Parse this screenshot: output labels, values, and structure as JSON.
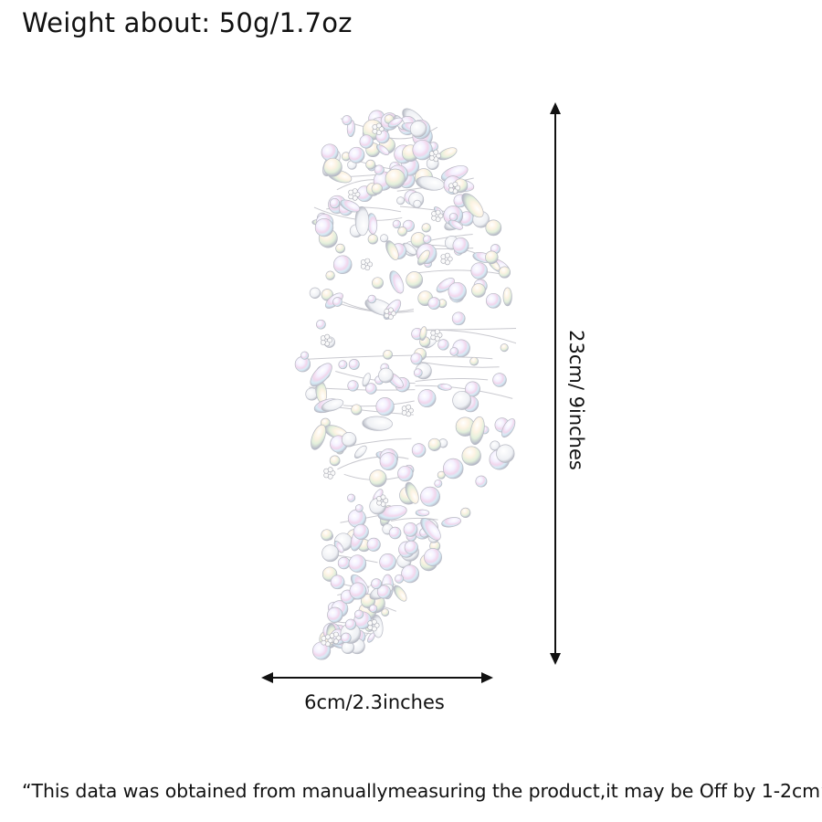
{
  "header": {
    "weight_text": "Weight about: 50g/1.7oz"
  },
  "product": {
    "image_subject": "crystal-rhinestone-hair-comb"
  },
  "dimensions": {
    "height_label": "23cm/ 9inches",
    "width_label": "6cm/2.3inches"
  },
  "footer": {
    "disclaimer": "“This data was obtained from manuallymeasuring the product,it may be Off by 1-2cm”"
  },
  "colors": {
    "text": "#111111",
    "background": "#ffffff",
    "arrow": "#111111"
  }
}
